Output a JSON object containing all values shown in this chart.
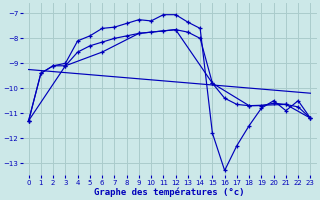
{
  "xlabel": "Graphe des températures (°c)",
  "bg_color": "#cce8e8",
  "grid_color": "#aacccc",
  "line_color": "#0000bb",
  "xlim": [
    -0.5,
    23.5
  ],
  "ylim": [
    -13.5,
    -6.6
  ],
  "yticks": [
    -13,
    -12,
    -11,
    -10,
    -9,
    -8,
    -7
  ],
  "xticks": [
    0,
    1,
    2,
    3,
    4,
    5,
    6,
    7,
    8,
    9,
    10,
    11,
    12,
    13,
    14,
    15,
    16,
    17,
    18,
    19,
    20,
    21,
    22,
    23
  ],
  "curve1_x": [
    0,
    1,
    2,
    3,
    4,
    5,
    6,
    7,
    8,
    9,
    10,
    11,
    12,
    13,
    14,
    15,
    16,
    17,
    18,
    19,
    20,
    21,
    22,
    23
  ],
  "curve1_y": [
    -11.3,
    -9.4,
    -9.1,
    -9.0,
    -8.1,
    -7.9,
    -7.6,
    -7.55,
    -7.4,
    -7.25,
    -7.3,
    -7.05,
    -7.05,
    -7.35,
    -7.6,
    -11.8,
    -13.3,
    -12.3,
    -11.5,
    -10.8,
    -10.5,
    -10.9,
    -10.5,
    -11.2
  ],
  "curve2_x": [
    0,
    1,
    2,
    3,
    4,
    5,
    6,
    7,
    8,
    9,
    10,
    11,
    12,
    13,
    14,
    15,
    16,
    17,
    18,
    19,
    20,
    21,
    22,
    23
  ],
  "curve2_y": [
    -11.3,
    -9.4,
    -9.1,
    -9.1,
    -8.55,
    -8.3,
    -8.15,
    -8.0,
    -7.9,
    -7.8,
    -7.75,
    -7.7,
    -7.65,
    -7.75,
    -8.0,
    -9.8,
    -10.4,
    -10.65,
    -10.7,
    -10.7,
    -10.6,
    -10.65,
    -10.75,
    -11.2
  ],
  "curve3_x": [
    0,
    3,
    6,
    9,
    12,
    15,
    18,
    21,
    23
  ],
  "curve3_y": [
    -11.3,
    -9.1,
    -8.55,
    -7.8,
    -7.65,
    -9.8,
    -10.7,
    -10.65,
    -11.2
  ],
  "curve4_x": [
    0,
    23
  ],
  "curve4_y": [
    -9.25,
    -10.2
  ]
}
